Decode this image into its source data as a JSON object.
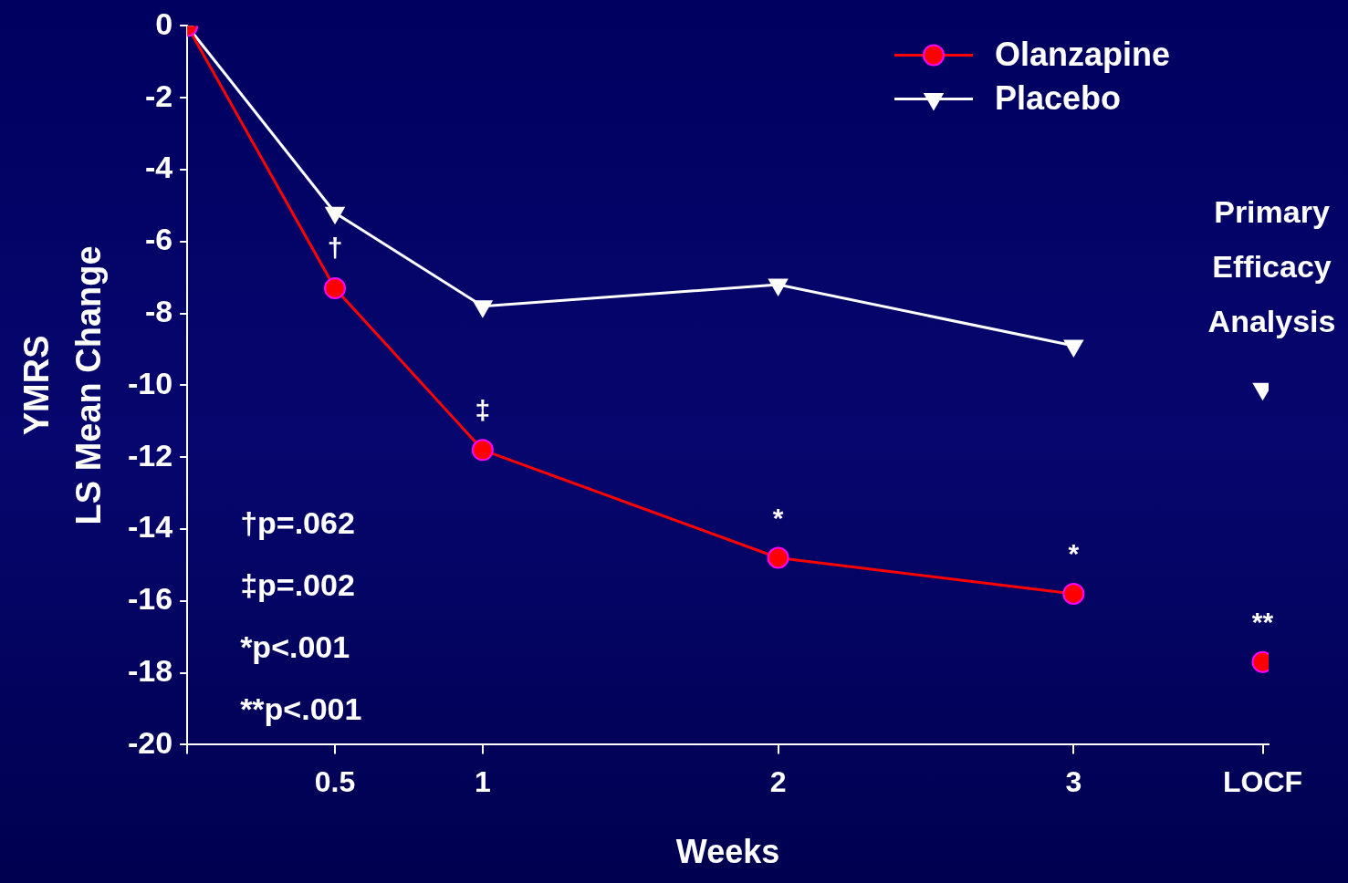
{
  "chart_data": {
    "type": "line",
    "xlabel": "Weeks",
    "ylabel": "YMRS\nLS Mean Change",
    "xlim": [
      0,
      3.66
    ],
    "xticks": [
      {
        "value": 0,
        "label": null
      },
      0.5,
      1,
      2,
      3,
      {
        "value": 3.64,
        "label": "LOCF"
      }
    ],
    "ylim": [
      -20,
      0
    ],
    "yticks": [
      -20,
      -18,
      -16,
      -14,
      -12,
      -10,
      -8,
      -6,
      -4,
      -2,
      0
    ],
    "grid": false,
    "legend": "top right",
    "series": [
      {
        "name": "Olanzapine",
        "color": "#ff0000",
        "marker": "circle",
        "x": [
          0,
          0.5,
          1,
          2,
          3
        ],
        "values": [
          0,
          -7.3,
          -11.8,
          -14.8,
          -15.8
        ]
      },
      {
        "name": "Placebo",
        "color": "#ffffff",
        "marker": "triangle",
        "x": [
          0,
          0.5,
          1,
          2,
          3
        ],
        "values": [
          0,
          -5.2,
          -7.8,
          -7.2,
          -8.9
        ]
      },
      {
        "color": "#ff0000",
        "marker": "circle",
        "x": [
          3.64
        ],
        "values": [
          -17.7
        ]
      },
      {
        "color": "#ffffff",
        "marker": "triangle",
        "x": [
          3.64
        ],
        "values": [
          -10.1
        ]
      }
    ],
    "annotations": [
      {
        "text": "†",
        "x": 0.5,
        "y": -7.3
      },
      {
        "text": "‡",
        "x": 1,
        "y": -11.8
      },
      {
        "text": "*",
        "x": 2,
        "y": -14.8
      },
      {
        "text": "*",
        "x": 3,
        "y": -15.8
      },
      {
        "text": "**",
        "x": 3.64,
        "y": -17.7
      },
      {
        "text": "Primary Efficacy Analysis",
        "x": 3.64,
        "y": -10.1
      },
      "†p=.062",
      "‡p=.002",
      "*p<.001",
      "**p<.001"
    ]
  }
}
